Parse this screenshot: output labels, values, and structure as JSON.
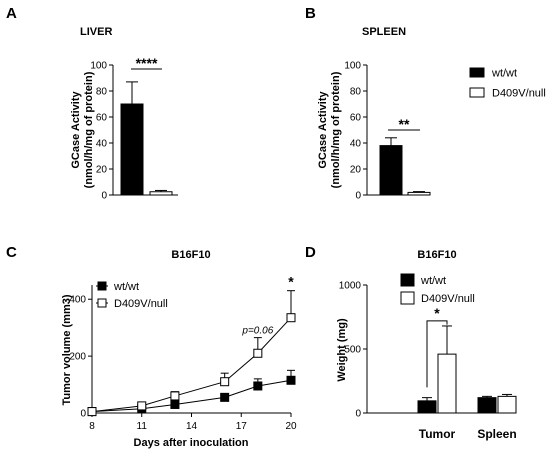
{
  "chart_data": [
    {
      "panel": "A",
      "type": "bar",
      "title": "LIVER",
      "ylabel_lines": [
        "GCase Activity",
        "(nmol/h/mg of protein)"
      ],
      "ylim": [
        0,
        100
      ],
      "yticks": [
        0,
        20,
        40,
        60,
        80,
        100
      ],
      "series": [
        {
          "name": "wt/wt",
          "value": 70,
          "error": 17,
          "fill": "#000000"
        },
        {
          "name": "D409V/null",
          "value": 2.5,
          "error": 1,
          "fill": "#ffffff"
        }
      ],
      "significance": "****"
    },
    {
      "panel": "B",
      "type": "bar",
      "title": "SPLEEN",
      "ylabel_lines": [
        "GCase Activity",
        "(nmol/h/mg of protein)"
      ],
      "ylim": [
        0,
        100
      ],
      "yticks": [
        0,
        20,
        40,
        60,
        80,
        100
      ],
      "series": [
        {
          "name": "wt/wt",
          "value": 38,
          "error": 6,
          "fill": "#000000"
        },
        {
          "name": "D409V/null",
          "value": 2,
          "error": 0.6,
          "fill": "#ffffff"
        }
      ],
      "significance": "**",
      "legend": [
        {
          "label": "wt/wt",
          "fill": "#000000"
        },
        {
          "label": "D409V/null",
          "fill": "#ffffff"
        }
      ]
    },
    {
      "panel": "C",
      "type": "line",
      "title": "B16F10",
      "xlabel": "Days after inoculation",
      "ylabel": "Tumor volume (mm3)",
      "xlim": [
        8,
        20
      ],
      "ylim": [
        0,
        450
      ],
      "xticks": [
        8,
        11,
        14,
        17,
        20
      ],
      "yticks": [
        0,
        200,
        400
      ],
      "series": [
        {
          "name": "wt/wt",
          "marker": "filled-square",
          "x": [
            8,
            11,
            13,
            16,
            18,
            20
          ],
          "y": [
            5,
            15,
            30,
            55,
            95,
            115
          ],
          "error": [
            3,
            5,
            8,
            12,
            25,
            35
          ]
        },
        {
          "name": "D409V/null",
          "marker": "open-square",
          "x": [
            8,
            11,
            13,
            16,
            18,
            20
          ],
          "y": [
            5,
            25,
            60,
            110,
            210,
            335
          ],
          "error": [
            4,
            7,
            15,
            30,
            55,
            95
          ]
        }
      ],
      "annotations": [
        {
          "text": "p=0.06",
          "x": 18,
          "y": 280
        },
        {
          "text": "*",
          "x": 20,
          "y": 445
        }
      ],
      "legend": [
        {
          "label": "wt/wt",
          "marker": "filled-square"
        },
        {
          "label": "D409V/null",
          "marker": "open-square"
        }
      ]
    },
    {
      "panel": "D",
      "type": "bar",
      "title": "B16F10",
      "ylabel": "Weight (mg)",
      "ylim": [
        0,
        1000
      ],
      "yticks": [
        0,
        500,
        1000
      ],
      "categories": [
        "Tumor",
        "Spleen"
      ],
      "series": [
        {
          "name": "wt/wt",
          "fill": "#000000",
          "values": [
            95,
            120
          ],
          "errors": [
            25,
            10
          ]
        },
        {
          "name": "D409V/null",
          "fill": "#ffffff",
          "values": [
            460,
            130
          ],
          "errors": [
            220,
            15
          ]
        }
      ],
      "significance": "*",
      "legend": [
        {
          "label": "wt/wt",
          "fill": "#000000"
        },
        {
          "label": "D409V/null",
          "fill": "#ffffff"
        }
      ]
    }
  ]
}
